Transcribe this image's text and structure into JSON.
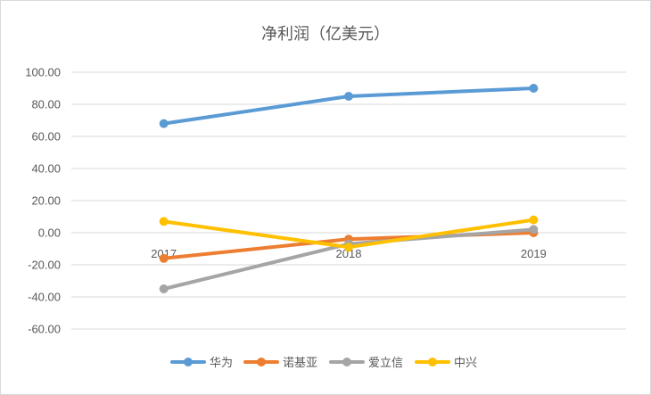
{
  "chart_data": {
    "type": "line",
    "title": "净利润（亿美元）",
    "categories": [
      "2017",
      "2018",
      "2019"
    ],
    "y_ticks": [
      "100.00",
      "80.00",
      "60.00",
      "40.00",
      "20.00",
      "0.00",
      "-20.00",
      "-40.00",
      "-60.00"
    ],
    "ylim": [
      -60,
      100
    ],
    "grid": true,
    "legend_position": "bottom",
    "series": [
      {
        "name": "华为",
        "values": [
          68,
          85,
          90
        ],
        "color": "#5b9bd5"
      },
      {
        "name": "诺基亚",
        "values": [
          -16,
          -4,
          0
        ],
        "color": "#ed7d31"
      },
      {
        "name": "爱立信",
        "values": [
          -35,
          -7,
          2
        ],
        "color": "#a5a5a5"
      },
      {
        "name": "中兴",
        "values": [
          7,
          -9,
          8
        ],
        "color": "#ffc000"
      }
    ]
  }
}
